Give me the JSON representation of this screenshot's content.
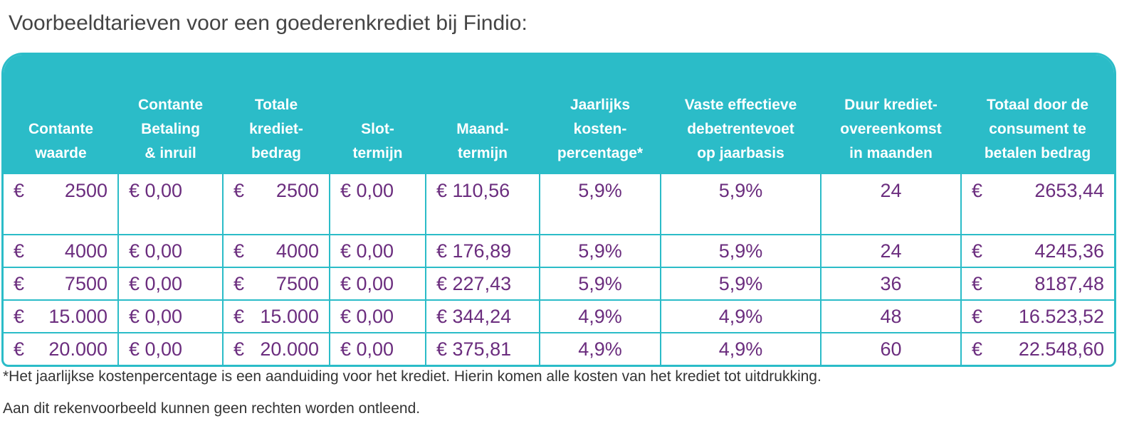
{
  "title": "Voorbeeldtarieven voor een goederenkrediet bij Findio:",
  "table": {
    "headers": [
      "Contante\nwaarde",
      "Contante\nBetaling\n& inruil",
      "Totale\nkrediet-\nbedrag",
      "Slot-\ntermijn",
      "Maand-\ntermijn",
      "Jaarlijks\nkosten-\npercentage*",
      "Vaste effectieve\ndebetrentevoet\nop jaarbasis",
      "Duur krediet-\novereenkomst\nin maanden",
      "Totaal door de\nconsument te\nbetalen bedrag"
    ],
    "rows": [
      [
        "€ 2500",
        "€ 0,00",
        "€ 2500",
        "€ 0,00",
        "€ 110,56",
        "5,9%",
        "5,9%",
        "24",
        "€ 2653,44"
      ],
      [
        "€ 4000",
        "€ 0,00",
        "€ 4000",
        "€ 0,00",
        "€ 176,89",
        "5,9%",
        "5,9%",
        "24",
        "€ 4245,36"
      ],
      [
        "€ 7500",
        "€ 0,00",
        "€ 7500",
        "€ 0,00",
        "€ 227,43",
        "5,9%",
        "5,9%",
        "36",
        "€ 8187,48"
      ],
      [
        "€ 15.000",
        "€ 0,00",
        "€ 15.000",
        "€ 0,00",
        "€ 344,24",
        "4,9%",
        "4,9%",
        "48",
        "€ 16.523,52"
      ],
      [
        "€ 20.000",
        "€ 0,00",
        "€ 20.000",
        "€ 0,00",
        "€ 375,81",
        "4,9%",
        "4,9%",
        "60",
        "€ 22.548,60"
      ]
    ]
  },
  "footnote": [
    "*Het jaarlijkse kostenpercentage is een aanduiding voor het krediet. Hierin komen alle kosten van het krediet tot uitdrukking.",
    "Aan dit rekenvoorbeeld kunnen geen rechten worden ontleend."
  ]
}
